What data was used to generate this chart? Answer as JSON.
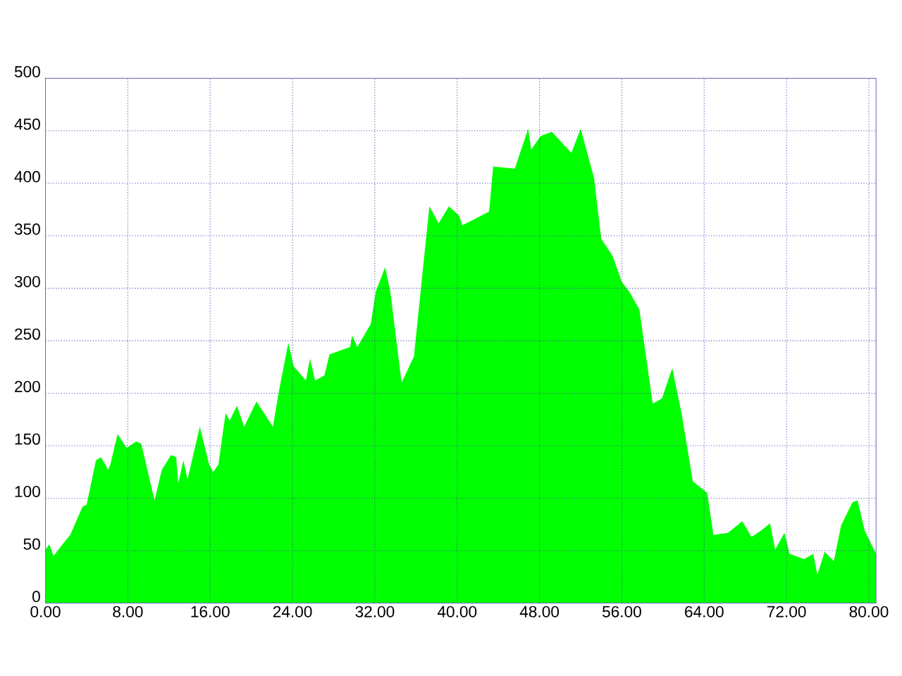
{
  "chart_data": {
    "type": "area",
    "x": [
      0,
      0.37,
      0.8,
      1.5,
      2.4,
      3.6,
      4,
      4.9,
      5.4,
      6.1,
      6.3,
      7,
      7.9,
      8.8,
      9.3,
      10,
      10.6,
      11.3,
      12.2,
      12.7,
      12.9,
      13.4,
      13.8,
      15,
      15.9,
      16.3,
      16.8,
      17.5,
      17.9,
      18.6,
      19.3,
      20.5,
      22.1,
      22.7,
      23.6,
      24.1,
      25.3,
      25.7,
      26.2,
      27.1,
      27.6,
      29.6,
      29.8,
      30.3,
      31.6,
      32.1,
      33,
      33.5,
      34.6,
      35.8,
      37.3,
      38.2,
      39.2,
      40.2,
      40.5,
      43.1,
      43.5,
      45.6,
      46.9,
      47.2,
      48.1,
      49.2,
      51.1,
      52,
      53.3,
      54,
      55.1,
      56,
      56.7,
      57.7,
      59,
      59.9,
      60.9,
      61.8,
      62.9,
      64.3,
      64.9,
      66.3,
      67.7,
      68.6,
      69.5,
      70.4,
      70.9,
      71.8,
      72.3,
      73.7,
      74.6,
      75,
      75.7,
      76.6,
      77.3,
      78.4,
      78.9,
      79.6,
      80.7
    ],
    "values": [
      51,
      56,
      45,
      54,
      65,
      92,
      94,
      136,
      139,
      127,
      132,
      161,
      148,
      154,
      152,
      123,
      98,
      127,
      141,
      139,
      114,
      136,
      118,
      168,
      132,
      125,
      132,
      181,
      174,
      188,
      168,
      192,
      168,
      203,
      248,
      226,
      212,
      233,
      212,
      217,
      237,
      244,
      255,
      244,
      266,
      297,
      320,
      297,
      210,
      235,
      378,
      362,
      378,
      369,
      360,
      373,
      416,
      414,
      452,
      432,
      445,
      449,
      429,
      452,
      405,
      347,
      331,
      306,
      297,
      280,
      190,
      195,
      224,
      181,
      116,
      105,
      65,
      67,
      78,
      63,
      69,
      76,
      51,
      67,
      47,
      42,
      47,
      27,
      49,
      40,
      74,
      96,
      98,
      69,
      47
    ],
    "color": "#00ff00",
    "xlim": [
      0,
      80.7
    ],
    "ylim": [
      0,
      500
    ],
    "xticks": [
      {
        "value": 0,
        "label": "0.00"
      },
      {
        "value": 8,
        "label": "8.00"
      },
      {
        "value": 16,
        "label": "16.00"
      },
      {
        "value": 24,
        "label": "24.00"
      },
      {
        "value": 32,
        "label": "32.00"
      },
      {
        "value": 40,
        "label": "40.00"
      },
      {
        "value": 48,
        "label": "48.00"
      },
      {
        "value": 56,
        "label": "56.00"
      },
      {
        "value": 64,
        "label": "64.00"
      },
      {
        "value": 72,
        "label": "72.00"
      },
      {
        "value": 80,
        "label": "80.00"
      }
    ],
    "yticks": [
      0,
      50,
      100,
      150,
      200,
      250,
      300,
      350,
      400,
      450,
      500
    ],
    "grid": true
  }
}
